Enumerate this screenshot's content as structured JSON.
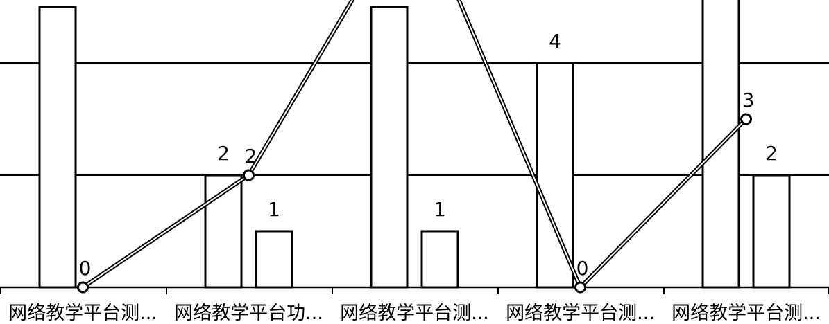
{
  "chart_data": {
    "type": "bar",
    "categories": [
      "网络教学平台测...",
      "网络教学平台功...",
      "网络教学平台测...",
      "网络教学平台测...",
      "网络教学平台测..."
    ],
    "series": [
      {
        "kind": "bar",
        "values": [
          5,
          2,
          5,
          4,
          6
        ]
      },
      {
        "kind": "bar",
        "values": [
          null,
          1,
          1,
          null,
          2
        ]
      },
      {
        "kind": "line",
        "values": [
          0,
          2,
          7,
          0,
          3
        ]
      }
    ],
    "ylim": [
      0,
      7
    ],
    "grid": true,
    "legend": "none",
    "colors": {
      "stroke": "#000000",
      "fill": "#ffffff"
    }
  }
}
